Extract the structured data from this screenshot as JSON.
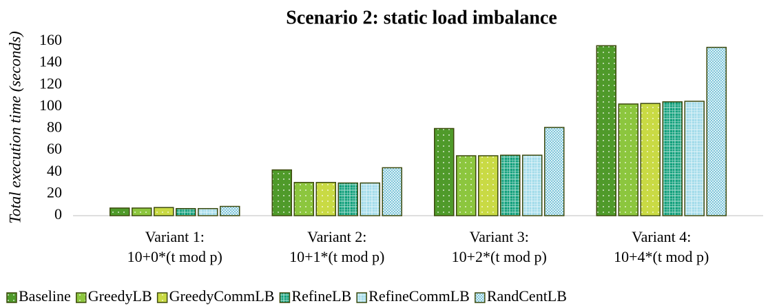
{
  "chart_data": {
    "type": "bar",
    "title": "Scenario 2: static load imbalance",
    "y_label": "Total execution time (seconds)",
    "categories": [
      [
        "Variant 1:",
        "10+0*(t mod p)"
      ],
      [
        "Variant 2:",
        "10+1*(t mod p)"
      ],
      [
        "Variant 3:",
        "10+2*(t mod p)"
      ],
      [
        "Variant 4:",
        "10+4*(t mod p)"
      ]
    ],
    "series": [
      {
        "name": "Baseline",
        "color": "#4f9a2a",
        "pattern": "dots",
        "values": [
          7,
          42,
          80,
          156
        ]
      },
      {
        "name": "GreedyLB",
        "color": "#8cc63e",
        "pattern": "dots",
        "values": [
          7,
          30.5,
          55,
          102.5
        ]
      },
      {
        "name": "GreedyCommLB",
        "color": "#c9da44",
        "pattern": "dots",
        "values": [
          7.5,
          30.5,
          55,
          103
        ]
      },
      {
        "name": "RefineLB",
        "color": "#12a07c",
        "pattern": "grid",
        "values": [
          6.5,
          30,
          55.5,
          104.5
        ]
      },
      {
        "name": "RefineCommLB",
        "color": "#a3dcea",
        "pattern": "grid",
        "values": [
          6.5,
          30,
          55.5,
          105
        ]
      },
      {
        "name": "RandCentLB",
        "color": "#7fc6da",
        "pattern": "checker",
        "values": [
          8.5,
          44,
          81,
          154.5
        ]
      }
    ],
    "ylim": [
      0,
      160
    ],
    "yticks": [
      0,
      20,
      40,
      60,
      80,
      100,
      120,
      140,
      160
    ],
    "grid": false,
    "legend": "bottom"
  }
}
